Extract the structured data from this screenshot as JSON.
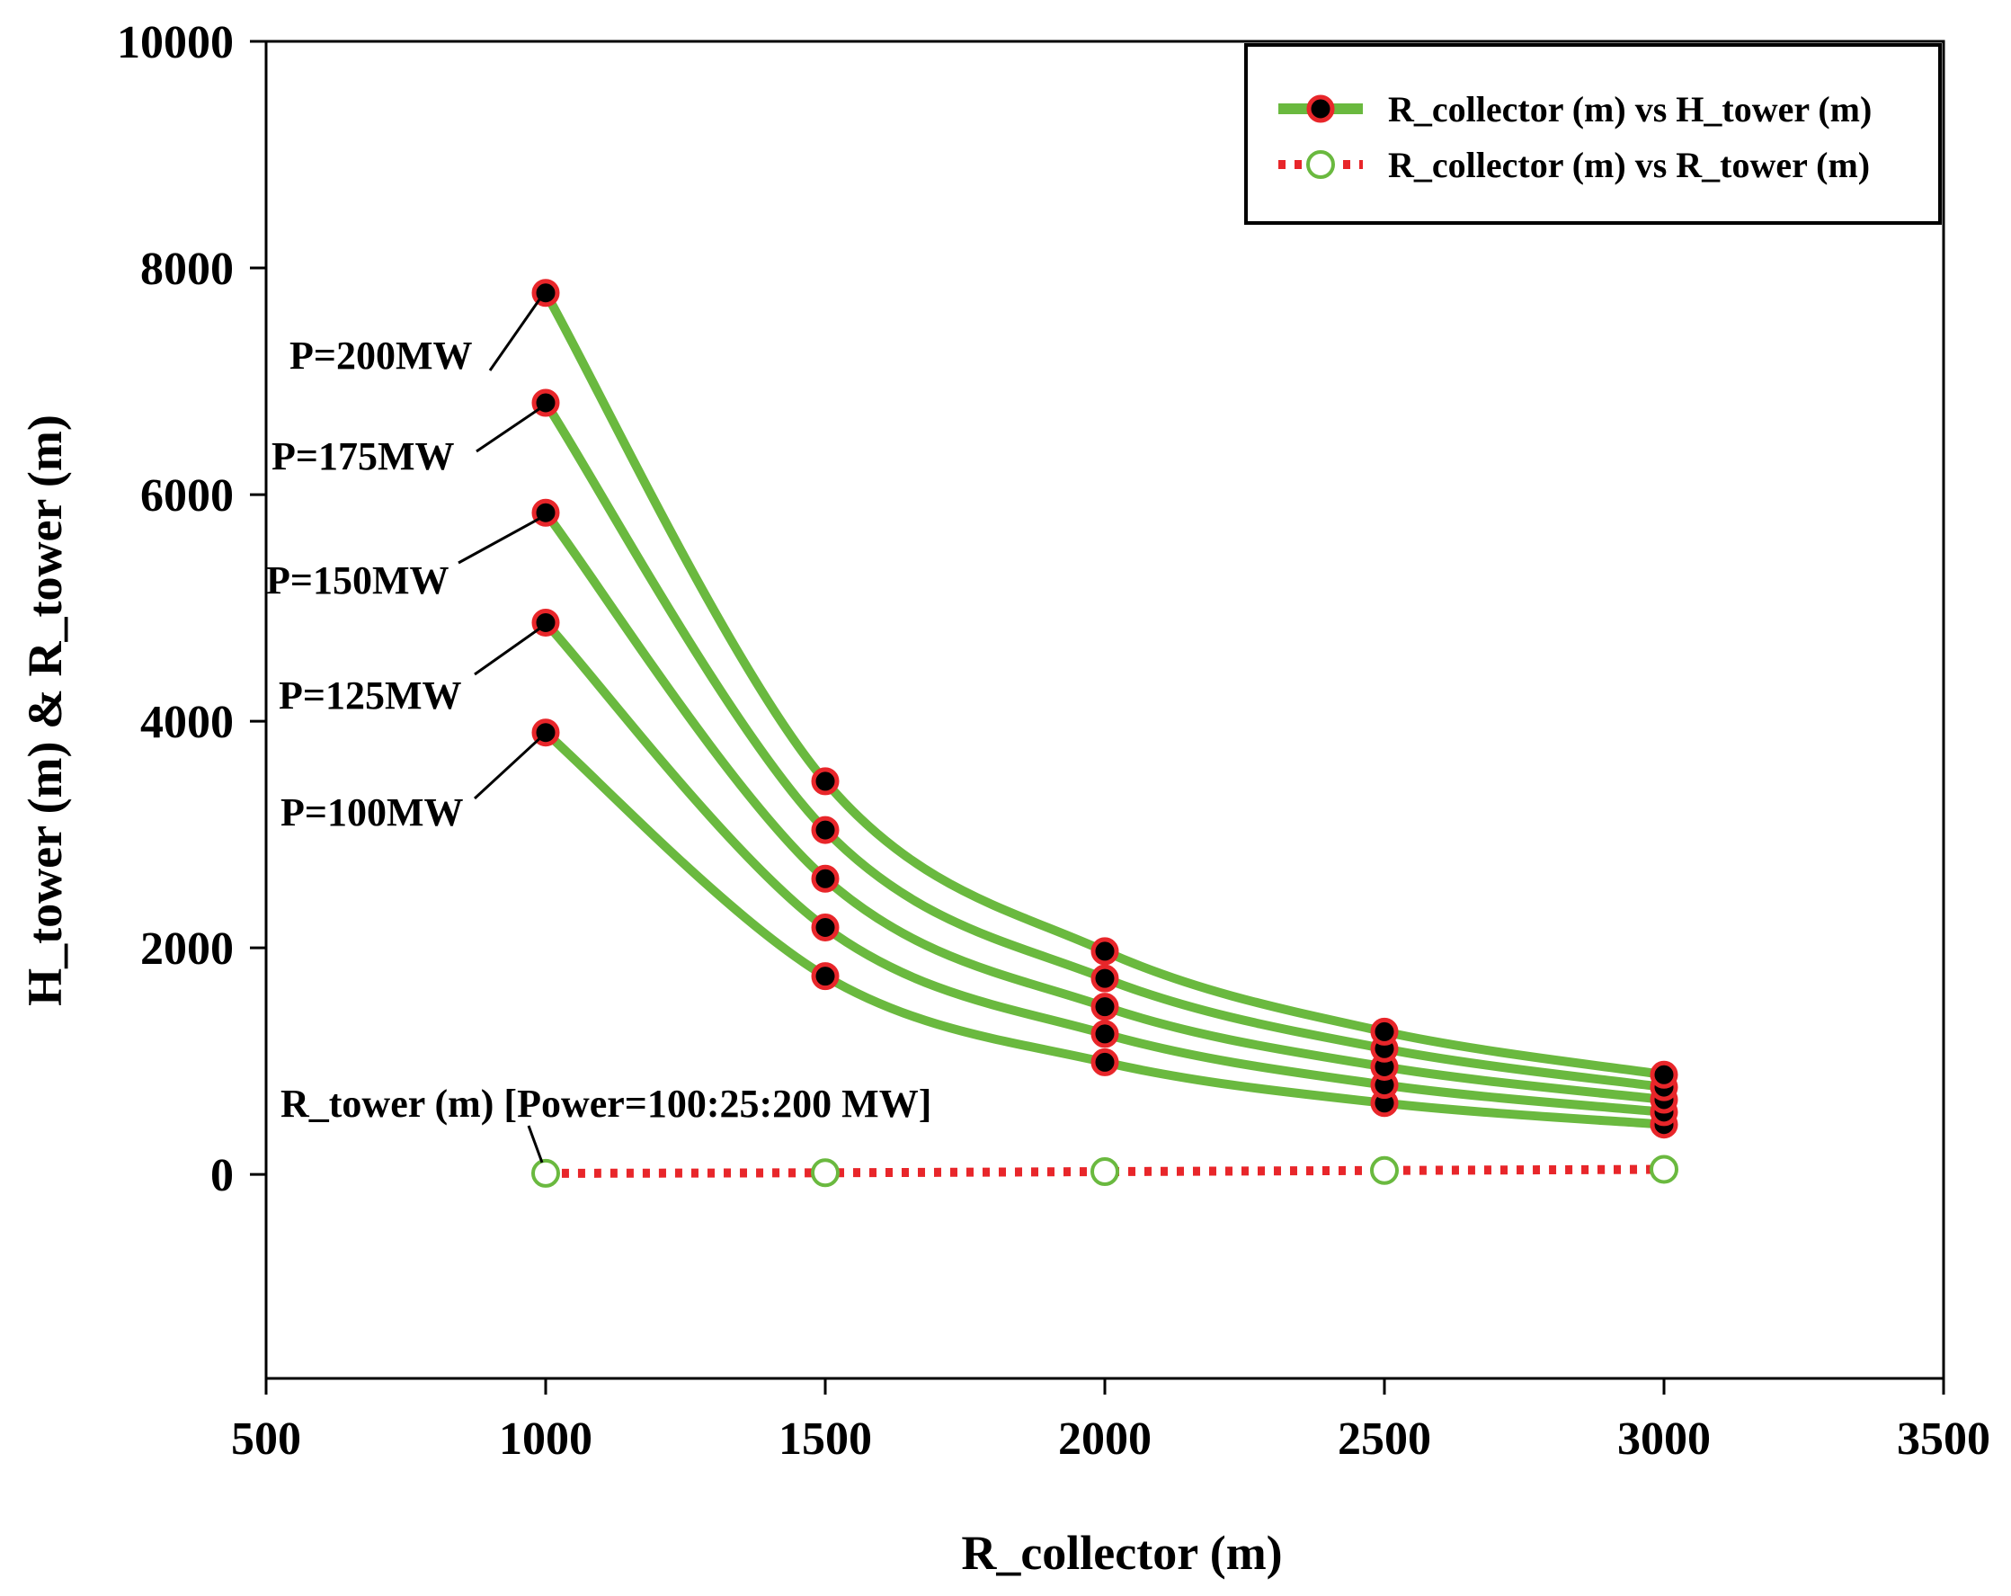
{
  "chart_data": {
    "type": "line",
    "title": "",
    "xlabel": "R_collector (m)",
    "ylabel": "H_tower (m) & R_tower (m)",
    "xlim": [
      500,
      3500
    ],
    "ylim": [
      -1800,
      10000
    ],
    "xticks": [
      500,
      1000,
      1500,
      2000,
      2500,
      3000,
      3500
    ],
    "yticks": [
      0,
      2000,
      4000,
      6000,
      8000,
      10000
    ],
    "x": [
      1000,
      1500,
      2000,
      2500,
      3000
    ],
    "series": [
      {
        "name": "P=100MW",
        "legend_group": "R_collector (m) vs H_tower (m)",
        "values": [
          3900,
          1750,
          990,
          630,
          440
        ]
      },
      {
        "name": "P=125MW",
        "legend_group": "R_collector (m) vs H_tower (m)",
        "values": [
          4870,
          2180,
          1240,
          790,
          550
        ]
      },
      {
        "name": "P=150MW",
        "legend_group": "R_collector (m) vs H_tower (m)",
        "values": [
          5840,
          2610,
          1480,
          950,
          660
        ]
      },
      {
        "name": "P=175MW",
        "legend_group": "R_collector (m) vs H_tower (m)",
        "values": [
          6810,
          3040,
          1730,
          1110,
          770
        ]
      },
      {
        "name": "P=200MW",
        "legend_group": "R_collector (m) vs H_tower (m)",
        "values": [
          7780,
          3470,
          1970,
          1260,
          880
        ]
      },
      {
        "name": "R_tower",
        "legend_group": "R_collector (m) vs R_tower (m)",
        "values": [
          10,
          15,
          25,
          35,
          45
        ]
      }
    ],
    "legend": {
      "position": "top-right",
      "entries": [
        "R_collector (m) vs H_tower (m)",
        "R_collector (m) vs R_tower (m)"
      ]
    },
    "annotations": [
      "P=200MW",
      "P=175MW",
      "P=150MW",
      "P=125MW",
      "P=100MW",
      "R_tower (m) [Power=100:25:200 MW]"
    ],
    "colors": {
      "h_line": "#6ab93f",
      "marker_fill": "#000000",
      "marker_edge": "#e8262a",
      "r_line": "#e8262a",
      "r_marker": "#6ab93f"
    }
  }
}
